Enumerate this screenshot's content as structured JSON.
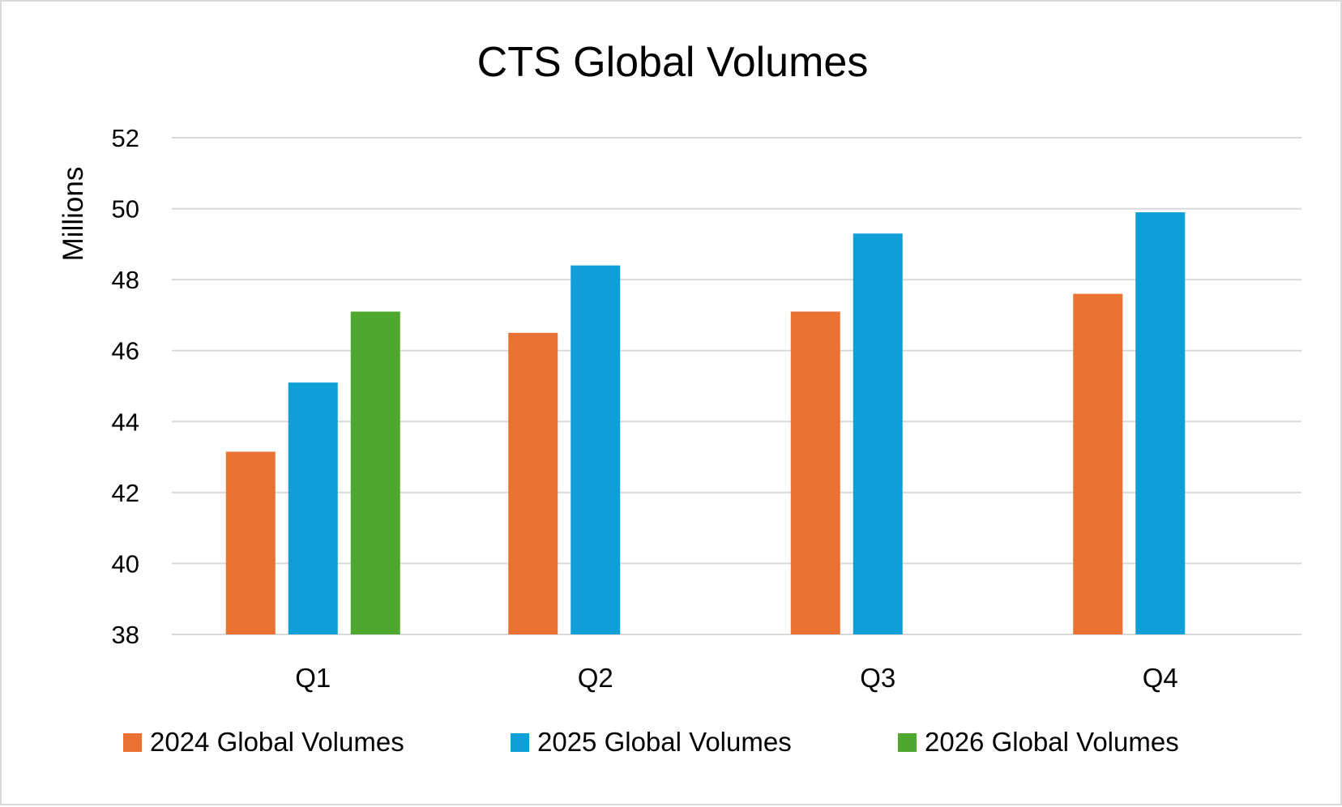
{
  "chart_data": {
    "type": "bar",
    "title": "CTS Global Volumes",
    "xlabel": "",
    "ylabel": "Millions",
    "ylim": [
      38,
      52
    ],
    "yticks": [
      38,
      40,
      42,
      44,
      46,
      48,
      50,
      52
    ],
    "categories": [
      "Q1",
      "Q2",
      "Q3",
      "Q4"
    ],
    "grid": true,
    "legend_position": "bottom",
    "series": [
      {
        "name": "2024 Global Volumes",
        "color": "#e97132",
        "values": [
          43.15,
          46.5,
          47.1,
          47.6
        ]
      },
      {
        "name": "2025 Global Volumes",
        "color": "#0f9ed5",
        "values": [
          45.1,
          48.4,
          49.3,
          49.9
        ]
      },
      {
        "name": "2026 Global Volumes",
        "color": "#4ea72e",
        "values": [
          47.1,
          null,
          null,
          null
        ]
      }
    ]
  }
}
